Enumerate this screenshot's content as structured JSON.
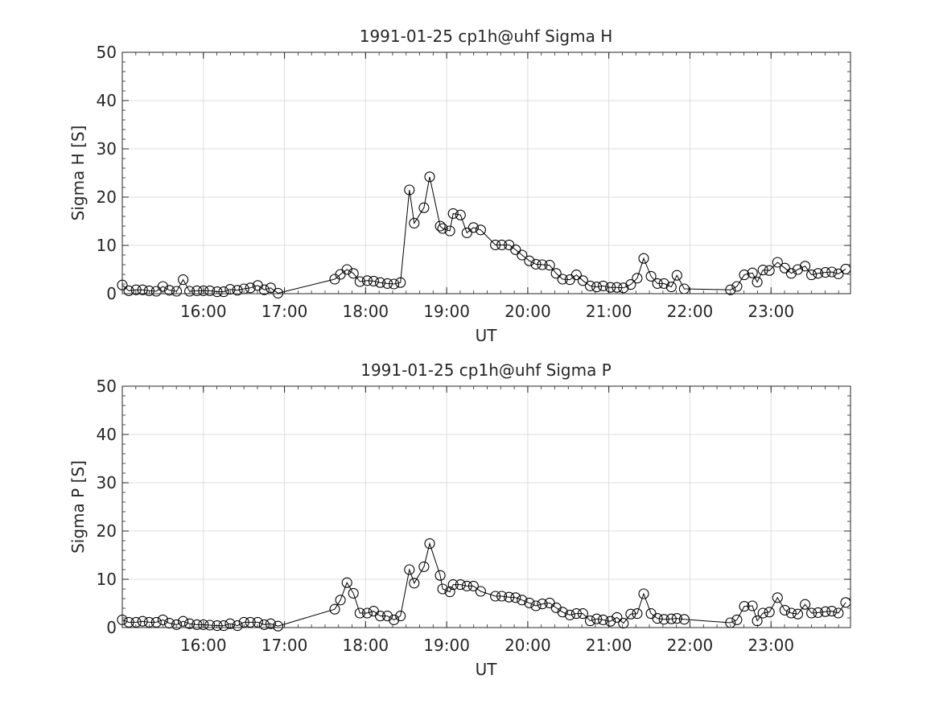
{
  "chart_data": [
    {
      "type": "line",
      "title": "1991-01-25  cp1h@uhf Sigma H",
      "xlabel": "UT",
      "ylabel": "Sigma H [S]",
      "xlim_hours": [
        15.0,
        23.98
      ],
      "ylim": [
        0,
        50
      ],
      "xticks": [
        {
          "h": 16,
          "label": "16:00"
        },
        {
          "h": 17,
          "label": "17:00"
        },
        {
          "h": 18,
          "label": "18:00"
        },
        {
          "h": 19,
          "label": "19:00"
        },
        {
          "h": 20,
          "label": "20:00"
        },
        {
          "h": 21,
          "label": "21:00"
        },
        {
          "h": 22,
          "label": "22:00"
        },
        {
          "h": 23,
          "label": "23:00"
        }
      ],
      "yticks": [
        0,
        10,
        20,
        30,
        40,
        50
      ],
      "grid": true,
      "marker": "open-circle",
      "color": "#000000",
      "x_hours": [
        15.0,
        15.08,
        15.17,
        15.25,
        15.33,
        15.42,
        15.5,
        15.58,
        15.67,
        15.75,
        15.83,
        15.92,
        16.0,
        16.08,
        16.17,
        16.25,
        16.33,
        16.42,
        16.5,
        16.58,
        16.67,
        16.75,
        16.83,
        16.92,
        17.62,
        17.69,
        17.77,
        17.85,
        17.93,
        18.02,
        18.1,
        18.18,
        18.27,
        18.35,
        18.43,
        18.54,
        18.6,
        18.72,
        18.79,
        18.92,
        18.95,
        19.04,
        19.08,
        19.17,
        19.25,
        19.33,
        19.42,
        19.6,
        19.68,
        19.77,
        19.85,
        19.93,
        20.02,
        20.1,
        20.18,
        20.27,
        20.35,
        20.43,
        20.52,
        20.6,
        20.68,
        20.77,
        20.85,
        20.93,
        21.02,
        21.1,
        21.18,
        21.27,
        21.35,
        21.43,
        21.52,
        21.6,
        21.68,
        21.77,
        21.84,
        21.93,
        22.5,
        22.58,
        22.67,
        22.77,
        22.83,
        22.9,
        22.98,
        23.08,
        23.17,
        23.25,
        23.33,
        23.42,
        23.5,
        23.58,
        23.67,
        23.75,
        23.83,
        23.92
      ],
      "values": [
        1.8,
        0.6,
        0.8,
        0.8,
        0.6,
        0.5,
        1.5,
        0.7,
        0.5,
        2.9,
        0.5,
        0.6,
        0.6,
        0.6,
        0.4,
        0.4,
        0.9,
        0.7,
        1.0,
        1.2,
        1.7,
        0.8,
        1.2,
        0.1,
        3.0,
        4.0,
        5.0,
        4.2,
        2.5,
        2.7,
        2.6,
        2.3,
        2.1,
        2.0,
        2.3,
        21.5,
        14.6,
        17.8,
        24.2,
        14.0,
        13.5,
        13.0,
        16.6,
        16.3,
        12.6,
        13.7,
        13.2,
        10.1,
        10.1,
        10.1,
        9.1,
        8.0,
        6.8,
        6.1,
        6.0,
        5.9,
        4.2,
        3.0,
        2.9,
        3.9,
        2.7,
        1.6,
        1.4,
        1.6,
        1.3,
        1.3,
        1.2,
        1.9,
        3.2,
        7.3,
        3.6,
        2.1,
        2.1,
        1.4,
        3.8,
        1.0,
        0.8,
        1.5,
        3.9,
        4.3,
        2.4,
        4.9,
        4.8,
        6.5,
        5.3,
        4.2,
        5.0,
        5.7,
        3.9,
        4.2,
        4.4,
        4.5,
        4.1,
        5.1
      ]
    },
    {
      "type": "line",
      "title": "1991-01-25  cp1h@uhf Sigma P",
      "xlabel": "UT",
      "ylabel": "Sigma P [S]",
      "xlim_hours": [
        15.0,
        23.98
      ],
      "ylim": [
        0,
        50
      ],
      "xticks": [
        {
          "h": 16,
          "label": "16:00"
        },
        {
          "h": 17,
          "label": "17:00"
        },
        {
          "h": 18,
          "label": "18:00"
        },
        {
          "h": 19,
          "label": "19:00"
        },
        {
          "h": 20,
          "label": "20:00"
        },
        {
          "h": 21,
          "label": "21:00"
        },
        {
          "h": 22,
          "label": "22:00"
        },
        {
          "h": 23,
          "label": "23:00"
        }
      ],
      "yticks": [
        0,
        10,
        20,
        30,
        40,
        50
      ],
      "grid": true,
      "marker": "open-circle",
      "color": "#000000",
      "x_hours": [
        15.0,
        15.08,
        15.17,
        15.25,
        15.33,
        15.42,
        15.5,
        15.58,
        15.67,
        15.75,
        15.83,
        15.92,
        16.0,
        16.08,
        16.17,
        16.25,
        16.33,
        16.42,
        16.5,
        16.58,
        16.67,
        16.75,
        16.83,
        16.92,
        17.62,
        17.69,
        17.77,
        17.85,
        17.93,
        18.02,
        18.1,
        18.18,
        18.27,
        18.35,
        18.43,
        18.54,
        18.6,
        18.72,
        18.79,
        18.92,
        18.95,
        19.04,
        19.08,
        19.17,
        19.25,
        19.33,
        19.42,
        19.6,
        19.68,
        19.77,
        19.85,
        19.93,
        20.02,
        20.1,
        20.18,
        20.27,
        20.35,
        20.43,
        20.52,
        20.6,
        20.68,
        20.77,
        20.85,
        20.93,
        21.02,
        21.1,
        21.18,
        21.27,
        21.35,
        21.43,
        21.52,
        21.6,
        21.68,
        21.77,
        21.84,
        21.93,
        22.5,
        22.58,
        22.67,
        22.77,
        22.83,
        22.9,
        22.98,
        23.08,
        23.17,
        23.25,
        23.33,
        23.42,
        23.5,
        23.58,
        23.67,
        23.75,
        23.83,
        23.92
      ],
      "values": [
        1.6,
        1.1,
        1.1,
        1.3,
        1.1,
        1.1,
        1.6,
        0.9,
        0.6,
        1.3,
        0.8,
        0.6,
        0.6,
        0.5,
        0.4,
        0.4,
        0.8,
        0.4,
        1.1,
        1.1,
        1.1,
        0.6,
        0.8,
        0.3,
        3.8,
        5.7,
        9.3,
        7.1,
        3.0,
        3.0,
        3.4,
        2.4,
        2.4,
        1.6,
        2.4,
        12.0,
        9.2,
        12.6,
        17.4,
        10.8,
        8.0,
        7.4,
        8.9,
        8.9,
        8.6,
        8.6,
        7.5,
        6.5,
        6.5,
        6.3,
        6.2,
        5.7,
        5.1,
        4.5,
        4.9,
        5.1,
        4.1,
        3.2,
        2.6,
        2.9,
        2.9,
        1.4,
        1.8,
        1.6,
        1.3,
        2.1,
        0.9,
        2.8,
        2.9,
        7.0,
        2.9,
        1.9,
        1.7,
        1.8,
        1.9,
        1.7,
        1.0,
        1.6,
        4.4,
        4.5,
        1.4,
        3.0,
        3.2,
        6.2,
        3.6,
        3.0,
        2.8,
        4.8,
        3.0,
        3.1,
        3.3,
        3.4,
        3.0,
        5.2
      ]
    }
  ]
}
